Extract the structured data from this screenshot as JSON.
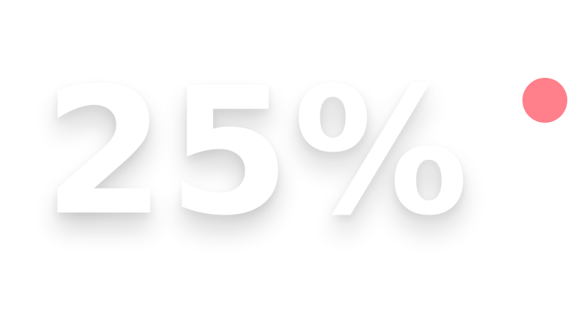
{
  "metric": {
    "value_label": "25%",
    "text_color": "#ffffff"
  },
  "indicator": {
    "color": "#ff7f8a"
  }
}
